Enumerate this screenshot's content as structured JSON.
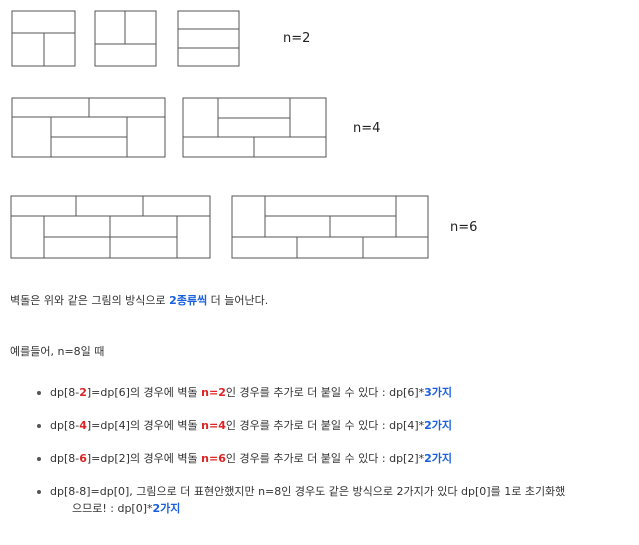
{
  "figure": {
    "labels": [
      "n=2",
      "n=4",
      "n=6"
    ]
  },
  "text": {
    "intro": {
      "a": "벽돌은 위와 같은 그림의 방식으로 ",
      "b": "2종류씩",
      "c": " 더 늘어난다."
    },
    "example": "예를들어, n=8일 때"
  },
  "items": [
    {
      "a": "dp[8-",
      "b": "2",
      "c": "]=dp[6]의 경우에 벽돌 ",
      "d": "n=2",
      "e": "인 경우를 추가로 더 붙일 수 있다 : dp[6]*",
      "f": "3가지"
    },
    {
      "a": "dp[8-",
      "b": "4",
      "c": "]=dp[4]의 경우에 벽돌 ",
      "d": "n=4",
      "e": "인 경우를 추가로 더 붙일 수 있다 : dp[4]*",
      "f": "2가지"
    },
    {
      "a": "dp[8-",
      "b": "6",
      "c": "]=dp[2]의 경우에 벽돌 ",
      "d": "n=6",
      "e": "인 경우를 추가로 더 붙일 수 있다 : dp[2]*",
      "f": "2가지"
    },
    {
      "a": "dp[8-8]=dp[0], 그림으로 더 표현안했지만 n=8인 경우도 같은 방식으로 2가지가 있다 dp[0]를 1로 초기화했",
      "b": "으므로! : dp[0]*",
      "c": "2가지"
    }
  ],
  "colors": {
    "highlight_blue": "#1a5fe0",
    "highlight_red": "#e02424",
    "line": "#555555"
  }
}
